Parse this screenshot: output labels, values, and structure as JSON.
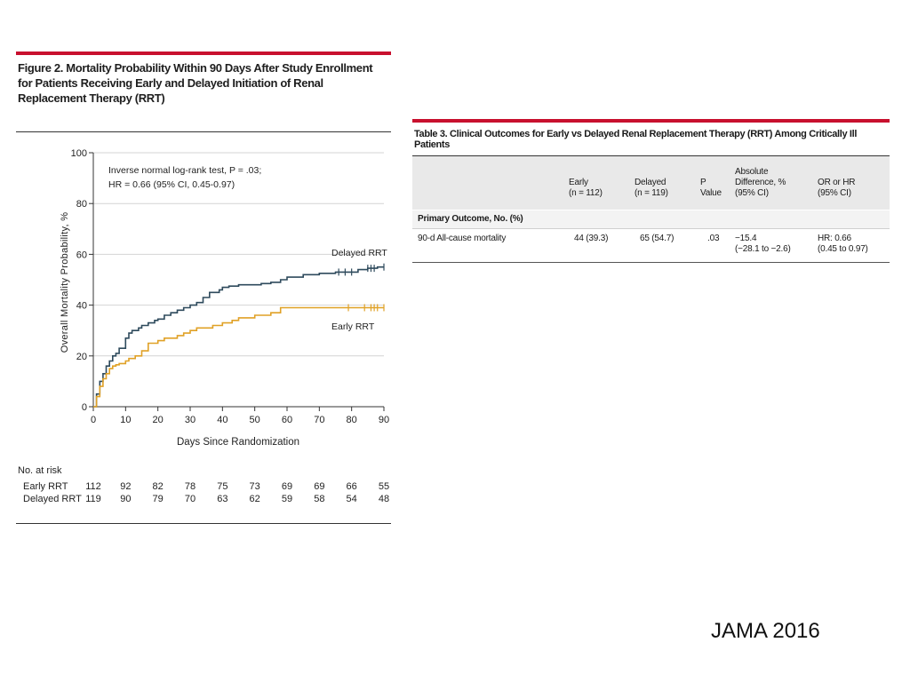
{
  "figure": {
    "title_lines": [
      "Figure 2. Mortality Probability Within 90 Days After Study Enrollment",
      "for Patients Receiving Early and Delayed Initiation of Renal",
      "Replacement Therapy (RRT)"
    ],
    "annotation_lines": [
      "Inverse normal log-rank test, P = .03;",
      "HR = 0.66 (95% CI, 0.45-0.97)"
    ],
    "at_risk": {
      "header": "No. at risk",
      "rows": [
        {
          "label": "Early RRT",
          "values": [
            "112",
            "92",
            "82",
            "78",
            "75",
            "73",
            "69",
            "69",
            "66",
            "55"
          ]
        },
        {
          "label": "Delayed RRT",
          "values": [
            "119",
            "90",
            "79",
            "70",
            "63",
            "62",
            "59",
            "58",
            "54",
            "48"
          ]
        }
      ]
    }
  },
  "chart_data": {
    "type": "line",
    "xlabel": "Days Since Randomization",
    "ylabel": "Overall Mortality Probability, %",
    "xlim": [
      0,
      90
    ],
    "ylim": [
      0,
      100
    ],
    "xticks": [
      0,
      10,
      20,
      30,
      40,
      50,
      60,
      70,
      80,
      90
    ],
    "yticks": [
      0,
      20,
      40,
      60,
      80,
      100
    ],
    "grid": "horizontal",
    "series": [
      {
        "name": "Delayed RRT",
        "color": "#2e4a5c",
        "x": [
          0,
          1,
          2,
          3,
          4,
          5,
          6,
          7,
          8,
          10,
          11,
          12,
          14,
          15,
          17,
          19,
          20,
          22,
          24,
          26,
          28,
          30,
          32,
          34,
          36,
          39,
          40,
          42,
          45,
          48,
          52,
          55,
          58,
          60,
          65,
          70,
          75,
          78,
          82,
          85,
          88,
          90
        ],
        "y": [
          0,
          5,
          10,
          13,
          16,
          18,
          20,
          21,
          23,
          27,
          29,
          30,
          31,
          32,
          33,
          34,
          34.5,
          36,
          37,
          38,
          39,
          40,
          41,
          43,
          45,
          46,
          47,
          47.5,
          48,
          48,
          48.5,
          49,
          50,
          51,
          52,
          52.5,
          53,
          53,
          54,
          54.5,
          55,
          55
        ],
        "censor_x": [
          76,
          78,
          80,
          85,
          86,
          87,
          90
        ]
      },
      {
        "name": "Early RRT",
        "color": "#e0a126",
        "x": [
          0,
          1,
          2,
          3,
          4,
          5,
          6,
          7,
          8,
          10,
          11,
          13,
          15,
          17,
          20,
          22,
          26,
          28,
          30,
          32,
          37,
          40,
          43,
          45,
          50,
          55,
          58,
          70,
          80,
          90
        ],
        "y": [
          0,
          4,
          8,
          11,
          13,
          15,
          16,
          16.5,
          17,
          18,
          19,
          20,
          22,
          25,
          26,
          27,
          28,
          29,
          30,
          31,
          32,
          33,
          34,
          35,
          36,
          37,
          39,
          39,
          39,
          39
        ],
        "censor_x": [
          79,
          84,
          86,
          87,
          88,
          90
        ]
      }
    ]
  },
  "table": {
    "title": "Table 3. Clinical Outcomes for Early vs Delayed Renal Replacement Therapy (RRT) Among Critically Ill Patients",
    "headers": {
      "early": "Early\n(n = 112)",
      "delayed": "Delayed\n(n = 119)",
      "p": "P\nValue",
      "absdiff": "Absolute\nDifference, %\n(95% CI)",
      "orhr": "OR or HR\n(95% CI)"
    },
    "section": "Primary Outcome, No. (%)",
    "row": {
      "label": "90-d All-cause mortality",
      "early": "44 (39.3)",
      "delayed": "65 (54.7)",
      "p": ".03",
      "absdiff": "−15.4\n(−28.1 to −2.6)",
      "orhr": "HR: 0.66\n(0.45 to 0.97)"
    }
  },
  "credit": "JAMA 2016"
}
